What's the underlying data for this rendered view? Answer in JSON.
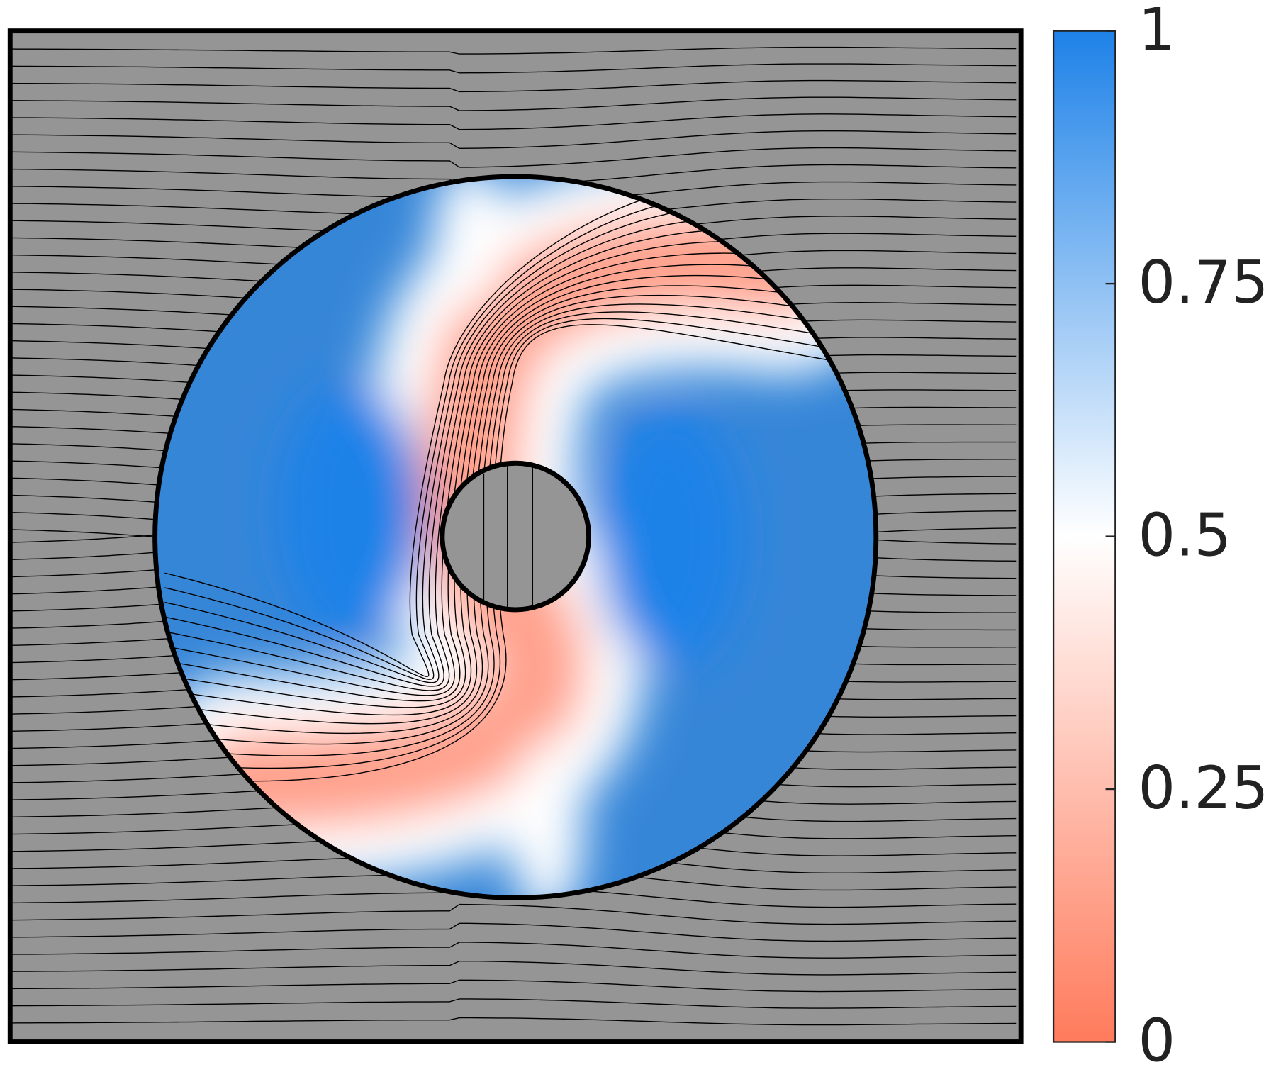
{
  "chart_data": {
    "type": "field",
    "colorbar": {
      "lim": [
        0,
        1
      ],
      "ticks": [
        0,
        0.25,
        0.5,
        0.75,
        1
      ],
      "colors": [
        "#ff7b5c",
        "#ffffff",
        "#1e82e8"
      ]
    }
  }
}
